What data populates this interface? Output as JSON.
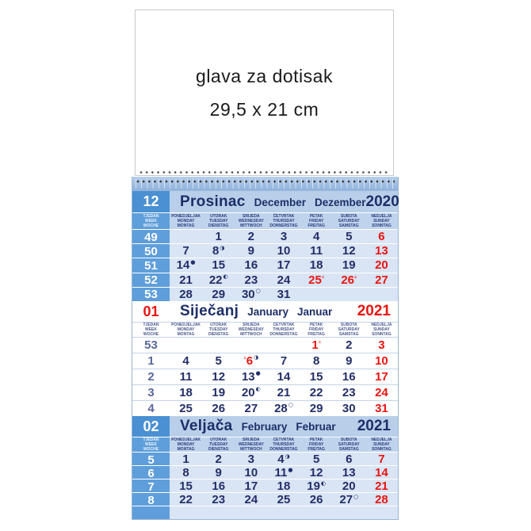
{
  "header_sheet": {
    "line1": "glava za dotisak",
    "line2": "29,5 x 21 cm"
  },
  "colors": {
    "blue_box": "#4a90d2",
    "week_cell": "#5e9eda",
    "head_band": "#b9cfe9",
    "wd_band": "#bfd3ec",
    "body_blue": "#d9e4f4",
    "hairline": "#c3d4ea",
    "navy": "#232e68",
    "name_navy": "#1c2f68",
    "red": "#e81511"
  },
  "moon_glyphs": {
    "new": "●",
    "first": "◐",
    "last": "◑",
    "full": "○"
  },
  "marker_glyph": "=",
  "weekday_header": {
    "week_col": [
      "TJEDAN",
      "WEEK",
      "WOCHE"
    ],
    "days": [
      [
        "PONEDJELJAK",
        "MONDAY",
        "MONTAG"
      ],
      [
        "UTORAK",
        "TUESDAY",
        "DIENSTAG"
      ],
      [
        "SRIJEDA",
        "WEDNESDAY",
        "MITTWOCH"
      ],
      [
        "ČETVRTAK",
        "THURSDAY",
        "DONNERSTAG"
      ],
      [
        "PETAK",
        "FRIDAY",
        "FREITAG"
      ],
      [
        "SUBOTA",
        "SATURDAY",
        "SAMSTAG"
      ],
      [
        "NEDJELJA",
        "SUNDAY",
        "SONNTAG"
      ]
    ]
  },
  "months": [
    {
      "number": "12",
      "name_hr": "Prosinac",
      "name_en": "December",
      "name_de": "Dezember",
      "year": "2020",
      "year_color": "navy",
      "style": "blue",
      "weeks": [
        {
          "week": "49",
          "days": [
            {},
            {
              "d": "1"
            },
            {
              "d": "2"
            },
            {
              "d": "3"
            },
            {
              "d": "4"
            },
            {
              "d": "5"
            },
            {
              "d": "6",
              "red": true
            }
          ]
        },
        {
          "week": "50",
          "days": [
            {
              "d": "7"
            },
            {
              "d": "8",
              "moon": "last"
            },
            {
              "d": "9"
            },
            {
              "d": "10"
            },
            {
              "d": "11"
            },
            {
              "d": "12"
            },
            {
              "d": "13",
              "red": true
            }
          ]
        },
        {
          "week": "51",
          "days": [
            {
              "d": "14",
              "moon": "new"
            },
            {
              "d": "15"
            },
            {
              "d": "16"
            },
            {
              "d": "17"
            },
            {
              "d": "18"
            },
            {
              "d": "19"
            },
            {
              "d": "20",
              "red": true
            }
          ]
        },
        {
          "week": "52",
          "days": [
            {
              "d": "21"
            },
            {
              "d": "22",
              "moon": "first"
            },
            {
              "d": "23"
            },
            {
              "d": "24"
            },
            {
              "d": "25",
              "red": true,
              "marker": "after"
            },
            {
              "d": "26",
              "red": true,
              "marker": "after"
            },
            {
              "d": "27",
              "red": true
            }
          ]
        },
        {
          "week": "53",
          "days": [
            {
              "d": "28"
            },
            {
              "d": "29"
            },
            {
              "d": "30",
              "moon": "full"
            },
            {
              "d": "31"
            },
            {},
            {},
            {}
          ]
        }
      ]
    },
    {
      "number": "01",
      "name_hr": "Siječanj",
      "name_en": "January",
      "name_de": "Januar",
      "year": "2021",
      "year_color": "red",
      "style": "white",
      "weeks": [
        {
          "week": "53",
          "days": [
            {},
            {},
            {},
            {},
            {
              "d": "1",
              "red": true,
              "marker": "after"
            },
            {
              "d": "2"
            },
            {
              "d": "3",
              "red": true
            }
          ]
        },
        {
          "week": "1",
          "days": [
            {
              "d": "4"
            },
            {
              "d": "5"
            },
            {
              "d": "6",
              "red": true,
              "marker": "before",
              "moon": "last"
            },
            {
              "d": "7"
            },
            {
              "d": "8"
            },
            {
              "d": "9"
            },
            {
              "d": "10",
              "red": true
            }
          ]
        },
        {
          "week": "2",
          "days": [
            {
              "d": "11"
            },
            {
              "d": "12"
            },
            {
              "d": "13",
              "moon": "new"
            },
            {
              "d": "14"
            },
            {
              "d": "15"
            },
            {
              "d": "16"
            },
            {
              "d": "17",
              "red": true
            }
          ]
        },
        {
          "week": "3",
          "days": [
            {
              "d": "18"
            },
            {
              "d": "19"
            },
            {
              "d": "20",
              "moon": "first"
            },
            {
              "d": "21"
            },
            {
              "d": "22"
            },
            {
              "d": "23"
            },
            {
              "d": "24",
              "red": true
            }
          ]
        },
        {
          "week": "4",
          "days": [
            {
              "d": "25"
            },
            {
              "d": "26"
            },
            {
              "d": "27"
            },
            {
              "d": "28",
              "moon": "full"
            },
            {
              "d": "29"
            },
            {
              "d": "30"
            },
            {
              "d": "31",
              "red": true
            }
          ]
        }
      ]
    },
    {
      "number": "02",
      "name_hr": "Veljača",
      "name_en": "February",
      "name_de": "Februar",
      "year": "2021",
      "year_color": "navy",
      "style": "blue",
      "weeks": [
        {
          "week": "5",
          "days": [
            {
              "d": "1"
            },
            {
              "d": "2"
            },
            {
              "d": "3"
            },
            {
              "d": "4",
              "moon": "last"
            },
            {
              "d": "5"
            },
            {
              "d": "6"
            },
            {
              "d": "7",
              "red": true
            }
          ]
        },
        {
          "week": "6",
          "days": [
            {
              "d": "8"
            },
            {
              "d": "9"
            },
            {
              "d": "10"
            },
            {
              "d": "11",
              "moon": "new"
            },
            {
              "d": "12"
            },
            {
              "d": "13"
            },
            {
              "d": "14",
              "red": true
            }
          ]
        },
        {
          "week": "7",
          "days": [
            {
              "d": "15"
            },
            {
              "d": "16"
            },
            {
              "d": "17"
            },
            {
              "d": "18"
            },
            {
              "d": "19",
              "moon": "first"
            },
            {
              "d": "20"
            },
            {
              "d": "21",
              "red": true
            }
          ]
        },
        {
          "week": "8",
          "days": [
            {
              "d": "22"
            },
            {
              "d": "23"
            },
            {
              "d": "24"
            },
            {
              "d": "25"
            },
            {
              "d": "26"
            },
            {
              "d": "27",
              "moon": "full"
            },
            {
              "d": "28",
              "red": true
            }
          ]
        },
        {
          "week": "",
          "days": [
            {},
            {},
            {},
            {},
            {},
            {},
            {}
          ]
        }
      ]
    }
  ]
}
